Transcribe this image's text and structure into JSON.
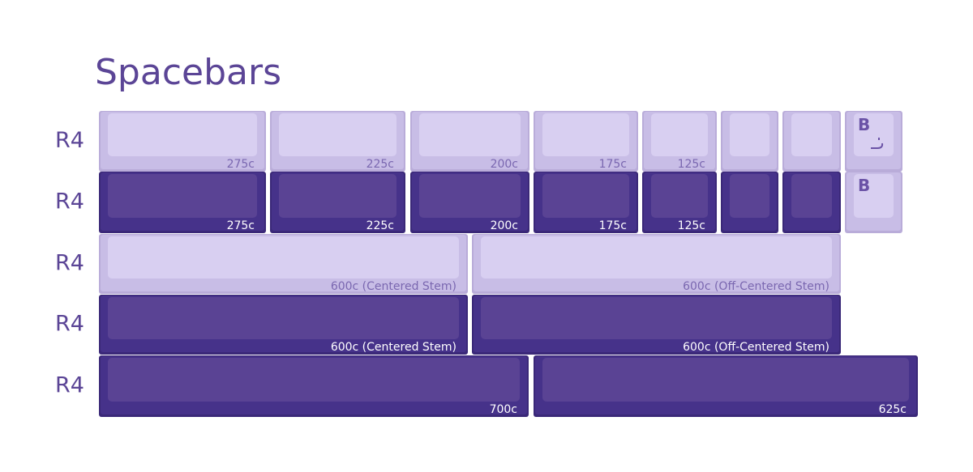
{
  "title": "Spacebars",
  "rows": [
    {
      "profile": "R4",
      "keys": [
        "275c",
        "225c",
        "200c",
        "175c",
        "125c"
      ],
      "legend": "B"
    },
    {
      "profile": "R4",
      "keys": [
        "275c",
        "225c",
        "200c",
        "175c",
        "125c"
      ],
      "legend": "B"
    },
    {
      "profile": "R4",
      "keys": [
        "600c (Centered Stem)",
        "600c (Off-Centered Stem)"
      ]
    },
    {
      "profile": "R4",
      "keys": [
        "600c (Centered Stem)",
        "600c (Off-Centered Stem)"
      ]
    },
    {
      "profile": "R4",
      "keys": [
        "700c",
        "625c"
      ]
    }
  ]
}
